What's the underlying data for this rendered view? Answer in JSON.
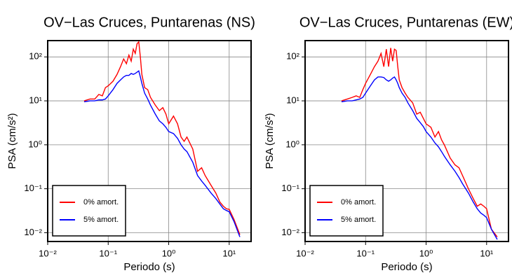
{
  "chart_data": [
    {
      "type": "line",
      "title": "OV−Las Cruces, Puntarenas (NS)",
      "x_label": "Periodo (s)",
      "y_label": "PSA (cm/s²)",
      "x": [
        0.04,
        0.05,
        0.06,
        0.07,
        0.08,
        0.09,
        0.1,
        0.12,
        0.14,
        0.16,
        0.18,
        0.2,
        0.22,
        0.24,
        0.26,
        0.28,
        0.3,
        0.32,
        0.34,
        0.36,
        0.4,
        0.45,
        0.5,
        0.6,
        0.7,
        0.8,
        0.9,
        1.0,
        1.2,
        1.4,
        1.6,
        1.8,
        2,
        2.5,
        3,
        3.5,
        4,
        5,
        6,
        7,
        8,
        9,
        10,
        12,
        15
      ],
      "series": [
        {
          "name": "0% amort.",
          "color": "#ff0000",
          "values": [
            10,
            11,
            11,
            14,
            13,
            20,
            22,
            28,
            40,
            60,
            90,
            70,
            110,
            80,
            150,
            120,
            200,
            220,
            100,
            40,
            20,
            18,
            12,
            8,
            6,
            7,
            5,
            3,
            4.5,
            3,
            1.5,
            1.2,
            1.5,
            0.8,
            0.25,
            0.3,
            0.2,
            0.12,
            0.08,
            0.05,
            0.04,
            0.035,
            0.034,
            0.02,
            0.009
          ]
        },
        {
          "name": "5% amort.",
          "color": "#0000ff",
          "values": [
            9.5,
            10,
            10,
            10.5,
            10.5,
            11,
            13,
            18,
            25,
            30,
            35,
            38,
            38,
            42,
            40,
            42,
            45,
            48,
            35,
            25,
            15,
            11,
            8,
            5,
            3.5,
            3,
            2.5,
            2,
            1.8,
            1.4,
            1,
            0.8,
            0.7,
            0.4,
            0.2,
            0.15,
            0.12,
            0.08,
            0.06,
            0.045,
            0.035,
            0.032,
            0.03,
            0.018,
            0.008
          ]
        }
      ],
      "xlim": [
        0.01,
        23
      ],
      "ylim": [
        0.0063,
        235
      ],
      "xlog": true,
      "ylog": true,
      "grid": true,
      "legend": "lower left",
      "xticks": [
        {
          "value": 0.01,
          "label": "10⁻²"
        },
        {
          "value": 0.1,
          "label": "10⁻¹"
        },
        {
          "value": 1,
          "label": "10⁰"
        },
        {
          "value": 10,
          "label": "10¹"
        }
      ],
      "yticks": [
        {
          "value": 0.01,
          "label": "10⁻²"
        },
        {
          "value": 0.1,
          "label": "10⁻¹"
        },
        {
          "value": 1,
          "label": "10⁰"
        },
        {
          "value": 10,
          "label": "10¹"
        },
        {
          "value": 100,
          "label": "10²"
        }
      ]
    },
    {
      "type": "line",
      "title": "OV−Las Cruces, Puntarenas (EW)",
      "x_label": "Periodo (s)",
      "y_label": "PSA (cm/s²)",
      "x": [
        0.04,
        0.05,
        0.06,
        0.07,
        0.08,
        0.09,
        0.1,
        0.12,
        0.14,
        0.16,
        0.18,
        0.2,
        0.22,
        0.24,
        0.26,
        0.28,
        0.3,
        0.32,
        0.34,
        0.36,
        0.4,
        0.45,
        0.5,
        0.6,
        0.7,
        0.8,
        0.9,
        1.0,
        1.2,
        1.4,
        1.6,
        1.8,
        2,
        2.5,
        3,
        3.5,
        4,
        5,
        6,
        7,
        8,
        9,
        10,
        12,
        15
      ],
      "series": [
        {
          "name": "0% amort.",
          "color": "#ff0000",
          "values": [
            10,
            11,
            12,
            13,
            12,
            18,
            25,
            40,
            60,
            80,
            120,
            60,
            150,
            60,
            160,
            80,
            150,
            140,
            60,
            30,
            20,
            15,
            12,
            9,
            5,
            5.5,
            4,
            3,
            2.5,
            1.5,
            2,
            1.3,
            1,
            0.5,
            0.35,
            0.3,
            0.2,
            0.1,
            0.06,
            0.04,
            0.045,
            0.04,
            0.035,
            0.012,
            0.008
          ]
        },
        {
          "name": "5% amort.",
          "color": "#0000ff",
          "values": [
            9.5,
            10,
            10,
            10.5,
            11,
            12,
            15,
            22,
            30,
            35,
            35,
            34,
            30,
            28,
            30,
            33,
            35,
            30,
            25,
            20,
            15,
            12,
            9,
            6,
            4,
            3.2,
            2.6,
            2,
            1.5,
            1.1,
            0.9,
            0.7,
            0.55,
            0.35,
            0.25,
            0.18,
            0.13,
            0.08,
            0.05,
            0.035,
            0.028,
            0.025,
            0.022,
            0.012,
            0.007
          ]
        }
      ],
      "xlim": [
        0.01,
        23
      ],
      "ylim": [
        0.0063,
        235
      ],
      "xlog": true,
      "ylog": true,
      "grid": true,
      "legend": "lower left",
      "xticks": [
        {
          "value": 0.01,
          "label": "10⁻²"
        },
        {
          "value": 0.1,
          "label": "10⁻¹"
        },
        {
          "value": 1,
          "label": "10⁰"
        },
        {
          "value": 10,
          "label": "10¹"
        }
      ],
      "yticks": [
        {
          "value": 0.01,
          "label": "10⁻²"
        },
        {
          "value": 0.1,
          "label": "10⁻¹"
        },
        {
          "value": 1,
          "label": "10⁰"
        },
        {
          "value": 10,
          "label": "10¹"
        },
        {
          "value": 100,
          "label": "10²"
        }
      ]
    }
  ]
}
